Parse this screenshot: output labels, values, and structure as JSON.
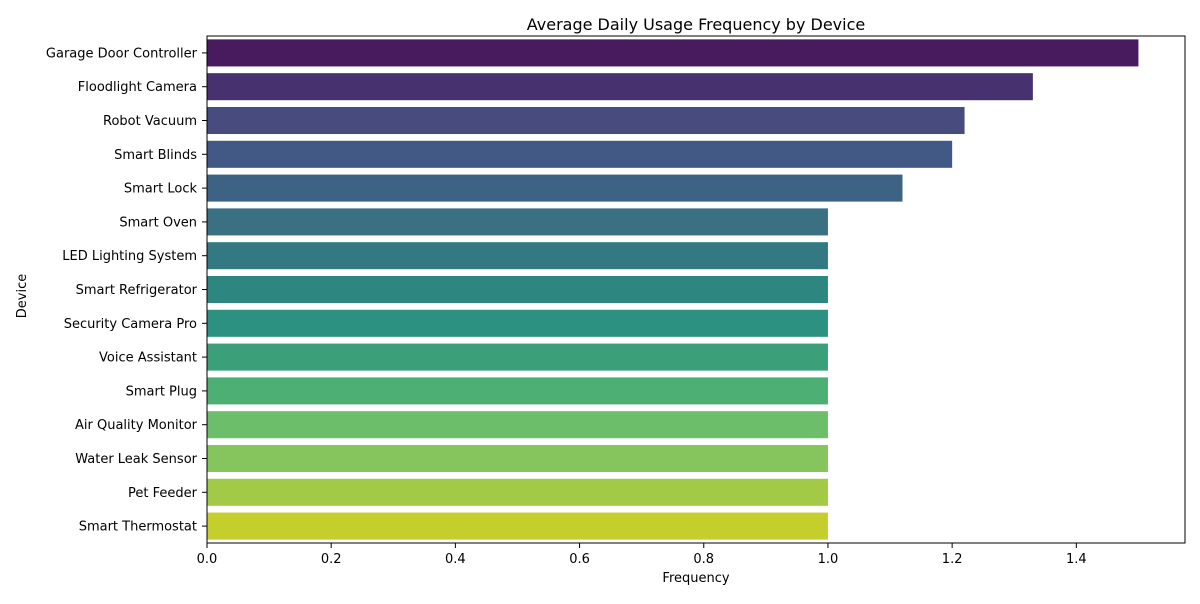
{
  "chart_data": {
    "type": "bar",
    "orientation": "horizontal",
    "title": "Average Daily Usage Frequency by Device",
    "xlabel": "Frequency",
    "ylabel": "Device",
    "xlim": [
      0,
      1.575
    ],
    "xticks": [
      0.0,
      0.2,
      0.4,
      0.6,
      0.8,
      1.0,
      1.2,
      1.4
    ],
    "xtick_labels": [
      "0.0",
      "0.2",
      "0.4",
      "0.6",
      "0.8",
      "1.0",
      "1.2",
      "1.4"
    ],
    "grid": false,
    "legend": "none",
    "categories": [
      "Garage Door Controller",
      "Floodlight Camera",
      "Robot Vacuum",
      "Smart Blinds",
      "Smart Lock",
      "Smart Oven",
      "LED Lighting System",
      "Smart Refrigerator",
      "Security Camera Pro",
      "Voice Assistant",
      "Smart Plug",
      "Air Quality Monitor",
      "Water Leak Sensor",
      "Pet Feeder",
      "Smart Thermostat"
    ],
    "values": [
      1.5,
      1.33,
      1.22,
      1.2,
      1.12,
      1.0,
      1.0,
      1.0,
      1.0,
      1.0,
      1.0,
      1.0,
      1.0,
      1.0,
      1.0
    ],
    "colors": [
      "#481B5F",
      "#48316F",
      "#474B7E",
      "#435985",
      "#3E6283",
      "#3A7082",
      "#347881",
      "#2E8680",
      "#2C9180",
      "#3BA07A",
      "#4DAF73",
      "#6CBE6B",
      "#86C55D",
      "#A2CA47",
      "#C4CF2E"
    ]
  }
}
